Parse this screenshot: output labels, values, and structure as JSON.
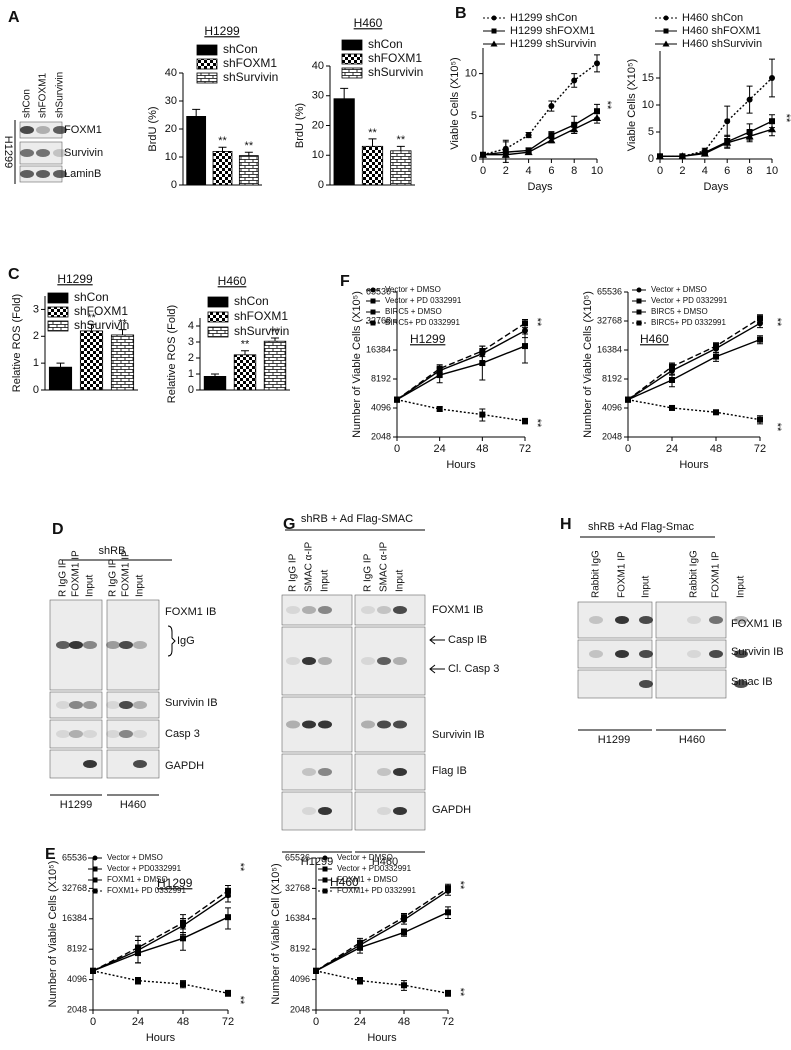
{
  "panels": [
    "A",
    "B",
    "C",
    "D",
    "E",
    "F",
    "G",
    "H"
  ],
  "blots": {
    "A": {
      "lanes": [
        "shCon",
        "shFOXM1",
        "shSurvivin"
      ],
      "cell": "H1299",
      "rows": [
        "FOXM1",
        "Survivin",
        "LaminB"
      ]
    },
    "D": {
      "header": "shRB",
      "lanes": [
        "R IgG IP",
        "FOXM1 IP",
        "Input",
        "R IgG IP",
        "FOXM1 IP",
        "Input"
      ],
      "rows": [
        "FOXM1 IB",
        "IgG",
        "Survivin IB",
        "Casp 3",
        "GAPDH"
      ],
      "cells": [
        "H1299",
        "H460"
      ]
    },
    "G": {
      "header": "shRB + Ad Flag-SMAC",
      "lanes": [
        "R IgG IP",
        "SMAC α-IP",
        "Input",
        "R IgG IP",
        "SMAC α-IP",
        "Input"
      ],
      "rows": [
        "FOXM1 IB",
        "Casp IB",
        "Cl. Casp 3",
        "Survivin IB",
        "Flag IB",
        "GAPDH"
      ],
      "cells": [
        "H1299",
        "H460"
      ]
    },
    "H": {
      "header": "shRB +Ad Flag-Smac",
      "lanes": [
        "Rabbit IgG",
        "FOXM1 IP",
        "Input",
        "Rabbit IgG",
        "FOXM1 IP",
        "Input"
      ],
      "rows": [
        "FOXM1 IB",
        "Survivin IB",
        "Smac IB"
      ],
      "cells": [
        "H1299",
        "H460"
      ]
    }
  },
  "chart_data": [
    {
      "type": "bar",
      "title": "H1299",
      "ylabel": "BrdU  (%)",
      "categories": [
        "shCon",
        "shFOXM1",
        "shSurvivin"
      ],
      "values": [
        24.5,
        12,
        10.5
      ],
      "errors": [
        2.5,
        1.5,
        1.2
      ],
      "significance": [
        null,
        "**",
        "**"
      ],
      "patterns": [
        "solid",
        "checker",
        "brick"
      ],
      "color": "#000000",
      "ylim": [
        0,
        40
      ],
      "yticks": [
        0,
        10,
        20,
        30,
        40
      ]
    },
    {
      "type": "bar",
      "title": "H460",
      "ylabel": "BrdU  (%)",
      "categories": [
        "shCon",
        "shFOXM1",
        "shSurvivin"
      ],
      "values": [
        29,
        13,
        11.5
      ],
      "errors": [
        3.5,
        2.5,
        1.5
      ],
      "significance": [
        null,
        "**",
        "**"
      ],
      "patterns": [
        "solid",
        "checker",
        "brick"
      ],
      "color": "#000000",
      "ylim": [
        0,
        40
      ],
      "yticks": [
        0,
        10,
        20,
        30,
        40
      ]
    },
    {
      "type": "line",
      "xlabel": "Days",
      "ylabel": "Viable Cells (X10⁵)",
      "x": [
        0,
        2,
        4,
        6,
        8,
        10
      ],
      "xlim": [
        0,
        10
      ],
      "xticks": [
        0,
        2,
        4,
        6,
        8,
        10
      ],
      "ylim": [
        0,
        13
      ],
      "yticks": [
        0,
        5,
        10
      ],
      "annotations": [
        "**"
      ],
      "series": [
        {
          "name": "H1299 shCon",
          "color": "#000000",
          "dash": "dotted",
          "marker": "circle",
          "values": [
            0.5,
            1.2,
            2.8,
            6.2,
            9.2,
            11.2
          ],
          "errors": [
            0.2,
            1.0,
            0.3,
            0.6,
            0.8,
            1.0
          ]
        },
        {
          "name": "H1299 shFOXM1",
          "color": "#000000",
          "dash": "solid",
          "marker": "square",
          "values": [
            0.5,
            0.8,
            1.0,
            2.8,
            4.0,
            5.6
          ],
          "errors": [
            0.2,
            1.2,
            0.3,
            0.4,
            1.0,
            0.8
          ]
        },
        {
          "name": "H1299 shSurvivin",
          "color": "#000000",
          "dash": "solid",
          "marker": "triangle",
          "values": [
            0.5,
            0.5,
            0.8,
            2.2,
            3.5,
            4.8
          ],
          "errors": [
            0.1,
            0.2,
            0.2,
            0.3,
            0.5,
            0.6
          ]
        }
      ]
    },
    {
      "type": "line",
      "xlabel": "Days",
      "ylabel": "Viable Cells (X10⁵)",
      "x": [
        0,
        2,
        4,
        6,
        8,
        10
      ],
      "xlim": [
        0,
        10
      ],
      "xticks": [
        0,
        2,
        4,
        6,
        8,
        10
      ],
      "ylim": [
        0,
        20
      ],
      "yticks": [
        0,
        5,
        10,
        15
      ],
      "annotations": [
        "**"
      ],
      "series": [
        {
          "name": "H460 shCon",
          "color": "#000000",
          "dash": "dotted",
          "marker": "circle",
          "values": [
            0.5,
            0.5,
            1.5,
            7,
            11,
            15
          ],
          "errors": [
            0.1,
            0.2,
            0.5,
            2.8,
            2.5,
            3.5
          ]
        },
        {
          "name": "H460 shFOXM1",
          "color": "#000000",
          "dash": "solid",
          "marker": "square",
          "values": [
            0.5,
            0.5,
            1.2,
            3.2,
            5,
            7
          ],
          "errors": [
            0.1,
            0.2,
            0.3,
            1.2,
            1.5,
            1.2
          ]
        },
        {
          "name": "H460 shSurvivin",
          "color": "#000000",
          "dash": "solid",
          "marker": "triangle",
          "values": [
            0.5,
            0.5,
            1.0,
            3.0,
            4.2,
            5.5
          ],
          "errors": [
            0.1,
            0.2,
            0.2,
            0.8,
            1.0,
            1.2
          ]
        }
      ]
    },
    {
      "type": "bar",
      "title": "H1299",
      "ylabel": "Relative ROS (Fold)",
      "categories": [
        "shCon",
        "shFOXM1",
        "shSurvivin"
      ],
      "values": [
        0.85,
        2.2,
        2.05
      ],
      "errors": [
        0.15,
        0.25,
        0.2
      ],
      "significance": [
        null,
        "**",
        "**"
      ],
      "patterns": [
        "solid",
        "checker",
        "brick"
      ],
      "color": "#000000",
      "ylim": [
        0,
        3.5
      ],
      "yticks": [
        0,
        1,
        2,
        3
      ]
    },
    {
      "type": "bar",
      "title": "H460",
      "ylabel": "Relative ROS (Fold)",
      "categories": [
        "shCon",
        "shFOXM1",
        "shSurvivin"
      ],
      "values": [
        0.85,
        2.2,
        3.05
      ],
      "errors": [
        0.15,
        0.25,
        0.2
      ],
      "significance": [
        null,
        "**",
        "**"
      ],
      "patterns": [
        "solid",
        "checker",
        "brick"
      ],
      "color": "#000000",
      "ylim": [
        0,
        4.5
      ],
      "yticks": [
        0,
        1,
        2,
        3,
        4
      ]
    },
    {
      "type": "line",
      "label": "H1299",
      "xlabel": "Hours",
      "ylabel": "Number of Viable Cells (X10⁵)",
      "x": [
        0,
        24,
        48,
        72
      ],
      "xlim": [
        0,
        72
      ],
      "xticks": [
        0,
        24,
        48,
        72
      ],
      "yscale": "log",
      "ylim": [
        2048,
        65536
      ],
      "yticks": [
        2048,
        4096,
        8192,
        16384,
        32768,
        65536
      ],
      "annotations": [
        "**",
        "**"
      ],
      "series": [
        {
          "name": "Vector + DMSO",
          "color": "#000000",
          "dash": "solid",
          "marker": "circle",
          "values": [
            5000,
            10000,
            15000,
            26000
          ],
          "errors": [
            100,
            800,
            3000,
            4000
          ]
        },
        {
          "name": "Vector + PD 0332991",
          "color": "#000000",
          "dash": "dashed",
          "marker": "square",
          "values": [
            5000,
            10500,
            16000,
            31000
          ],
          "errors": [
            100,
            1000,
            2000,
            3000
          ]
        },
        {
          "name": "BIRC5 + DMSO",
          "color": "#000000",
          "dash": "solid",
          "marker": "square",
          "values": [
            5000,
            9000,
            12000,
            18000
          ],
          "errors": [
            100,
            1500,
            4000,
            6000
          ]
        },
        {
          "name": "BIRC5+ PD 0332991",
          "color": "#000000",
          "dash": "dotted",
          "marker": "square",
          "values": [
            5000,
            4000,
            3500,
            3000
          ],
          "errors": [
            100,
            200,
            500,
            200
          ]
        }
      ]
    },
    {
      "type": "line",
      "label": "H460",
      "xlabel": "Hours",
      "ylabel": "Number of Viable Cells (X10⁵)",
      "x": [
        0,
        24,
        48,
        72
      ],
      "xlim": [
        0,
        72
      ],
      "xticks": [
        0,
        24,
        48,
        72
      ],
      "yscale": "log",
      "ylim": [
        2048,
        65536
      ],
      "yticks": [
        2048,
        4096,
        8192,
        16384,
        32768,
        65536
      ],
      "annotations": [
        "**",
        "**"
      ],
      "series": [
        {
          "name": "Vector + DMSO",
          "color": "#000000",
          "dash": "solid",
          "marker": "circle",
          "values": [
            5000,
            10000,
            17000,
            31000
          ],
          "errors": [
            100,
            1000,
            1500,
            3000
          ]
        },
        {
          "name": "Vector + PD 0332991",
          "color": "#000000",
          "dash": "dashed",
          "marker": "square",
          "values": [
            5000,
            11000,
            18000,
            35000
          ],
          "errors": [
            100,
            1000,
            1500,
            3000
          ]
        },
        {
          "name": "BIRC5 + DMSO",
          "color": "#000000",
          "dash": "solid",
          "marker": "square",
          "values": [
            5000,
            8000,
            14000,
            21000
          ],
          "errors": [
            100,
            1200,
            1500,
            2000
          ]
        },
        {
          "name": "BIRC5+ PD 0332991",
          "color": "#000000",
          "dash": "dotted",
          "marker": "square",
          "values": [
            5000,
            4100,
            3700,
            3100
          ],
          "errors": [
            100,
            200,
            200,
            300
          ]
        }
      ]
    },
    {
      "type": "line",
      "label": "H1299",
      "xlabel": "Hours",
      "ylabel": "Number of Viable Cells (X10⁵)",
      "x": [
        0,
        24,
        48,
        72
      ],
      "xlim": [
        0,
        72
      ],
      "xticks": [
        0,
        24,
        48,
        72
      ],
      "yscale": "log",
      "ylim": [
        2048,
        65536
      ],
      "yticks": [
        2048,
        4096,
        8192,
        16384,
        32768,
        65536
      ],
      "annotations": [
        "**",
        "**"
      ],
      "series": [
        {
          "name": "Vector + DMSO",
          "color": "#000000",
          "dash": "solid",
          "marker": "circle",
          "values": [
            5000,
            8000,
            14000,
            28000
          ],
          "errors": [
            100,
            2000,
            2500,
            4000
          ]
        },
        {
          "name": "Vector + PD0332991",
          "color": "#000000",
          "dash": "dashed",
          "marker": "square",
          "values": [
            5000,
            8500,
            15000,
            31000
          ],
          "errors": [
            100,
            2500,
            3000,
            4000
          ]
        },
        {
          "name": "FOXM1 + DMSO",
          "color": "#000000",
          "dash": "solid",
          "marker": "square",
          "values": [
            5000,
            7500,
            10500,
            17000
          ],
          "errors": [
            100,
            1500,
            2500,
            4000
          ]
        },
        {
          "name": "FOXM1+ PD 0332991",
          "color": "#000000",
          "dash": "dotted",
          "marker": "square",
          "values": [
            5000,
            4000,
            3700,
            3000
          ],
          "errors": [
            100,
            300,
            300,
            200
          ]
        }
      ]
    },
    {
      "type": "line",
      "label": "H460",
      "xlabel": "Hours",
      "ylabel": "Number of Viable Cell (X10⁵)",
      "x": [
        0,
        24,
        48,
        72
      ],
      "xlim": [
        0,
        72
      ],
      "xticks": [
        0,
        24,
        48,
        72
      ],
      "yscale": "log",
      "ylim": [
        2048,
        65536
      ],
      "yticks": [
        2048,
        4096,
        8192,
        16384,
        32768,
        65536
      ],
      "annotations": [
        "**",
        "**"
      ],
      "series": [
        {
          "name": "Vector + DMSO",
          "color": "#000000",
          "dash": "solid",
          "marker": "circle",
          "values": [
            5000,
            9000,
            16000,
            31000
          ],
          "errors": [
            100,
            1000,
            1500,
            3000
          ]
        },
        {
          "name": "Vector + PD0332991",
          "color": "#000000",
          "dash": "dashed",
          "marker": "square",
          "values": [
            5000,
            9500,
            17000,
            33000
          ],
          "errors": [
            100,
            1000,
            1500,
            3000
          ]
        },
        {
          "name": "FOXM1 + DMSO",
          "color": "#000000",
          "dash": "solid",
          "marker": "square",
          "values": [
            5000,
            8500,
            12000,
            19000
          ],
          "errors": [
            100,
            1000,
            1000,
            2500
          ]
        },
        {
          "name": "FOXM1+ PD 0332991",
          "color": "#000000",
          "dash": "dotted",
          "marker": "square",
          "values": [
            5000,
            4000,
            3600,
            3000
          ],
          "errors": [
            100,
            300,
            400,
            200
          ]
        }
      ]
    }
  ]
}
